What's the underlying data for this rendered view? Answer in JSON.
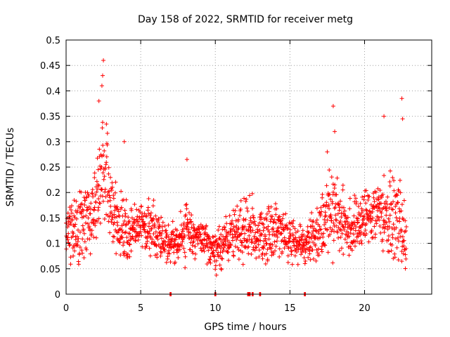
{
  "chart_data": {
    "type": "scatter",
    "title": "Day 158 of 2022, SRMTID for receiver metg",
    "xlabel": "GPS time / hours",
    "ylabel": "SRMTID / TECUs",
    "xlim": [
      0,
      24.5
    ],
    "ylim": [
      0,
      0.5
    ],
    "x_ticks": [
      0,
      5,
      10,
      15,
      20
    ],
    "x_tick_labels": [
      "0",
      "5",
      "10",
      "15",
      "20"
    ],
    "y_ticks": [
      0,
      0.05,
      0.1,
      0.15,
      0.2,
      0.25,
      0.3,
      0.35,
      0.4,
      0.45,
      0.5
    ],
    "y_tick_labels": [
      "0",
      "0.05",
      "0.1",
      "0.15",
      "0.2",
      "0.25",
      "0.3",
      "0.35",
      "0.4",
      "0.45",
      "0.5"
    ],
    "grid": true,
    "marker": "plus",
    "color": "#ff0000",
    "series": [
      {
        "name": "SRMTID",
        "envelope": {
          "hours": [
            0,
            0.5,
            1,
            1.5,
            2,
            2.3,
            2.5,
            2.7,
            3,
            3.5,
            4,
            4.5,
            5,
            5.5,
            6,
            6.5,
            7,
            7.5,
            8,
            8.5,
            9,
            9.5,
            10,
            10.5,
            11,
            11.5,
            12,
            12.5,
            13,
            13.5,
            14,
            14.5,
            15,
            15.5,
            16,
            16.5,
            17,
            17.5,
            18,
            18.5,
            19,
            19.5,
            20,
            20.5,
            21,
            21.5,
            22,
            22.5,
            22.8
          ],
          "typical": [
            0.13,
            0.12,
            0.13,
            0.15,
            0.18,
            0.22,
            0.24,
            0.21,
            0.17,
            0.14,
            0.12,
            0.12,
            0.14,
            0.13,
            0.12,
            0.11,
            0.1,
            0.1,
            0.13,
            0.12,
            0.11,
            0.1,
            0.08,
            0.1,
            0.11,
            0.12,
            0.13,
            0.12,
            0.12,
            0.11,
            0.13,
            0.12,
            0.11,
            0.1,
            0.1,
            0.11,
            0.13,
            0.16,
            0.17,
            0.14,
            0.13,
            0.14,
            0.15,
            0.16,
            0.17,
            0.15,
            0.15,
            0.14,
            0.09
          ],
          "spread": [
            0.04,
            0.05,
            0.06,
            0.06,
            0.07,
            0.09,
            0.1,
            0.09,
            0.06,
            0.05,
            0.05,
            0.04,
            0.04,
            0.04,
            0.04,
            0.03,
            0.03,
            0.03,
            0.05,
            0.04,
            0.03,
            0.03,
            0.03,
            0.04,
            0.04,
            0.05,
            0.05,
            0.05,
            0.05,
            0.05,
            0.05,
            0.04,
            0.04,
            0.03,
            0.03,
            0.04,
            0.05,
            0.07,
            0.07,
            0.05,
            0.05,
            0.05,
            0.05,
            0.05,
            0.06,
            0.06,
            0.06,
            0.07,
            0.04
          ]
        },
        "data_range_hours": [
          0,
          22.8
        ],
        "peaks": [
          {
            "x": 2.5,
            "y": 0.46
          },
          {
            "x": 2.45,
            "y": 0.43
          },
          {
            "x": 2.4,
            "y": 0.41
          },
          {
            "x": 2.2,
            "y": 0.38
          },
          {
            "x": 17.9,
            "y": 0.37
          },
          {
            "x": 22.5,
            "y": 0.385
          },
          {
            "x": 22.55,
            "y": 0.345
          },
          {
            "x": 21.3,
            "y": 0.35
          },
          {
            "x": 8.1,
            "y": 0.265
          },
          {
            "x": 3.9,
            "y": 0.3
          },
          {
            "x": 18.0,
            "y": 0.32
          },
          {
            "x": 17.5,
            "y": 0.28
          }
        ],
        "zero_points": [
          7.0,
          10.0,
          12.2,
          12.3,
          12.5,
          13.0,
          16.0
        ]
      }
    ]
  }
}
